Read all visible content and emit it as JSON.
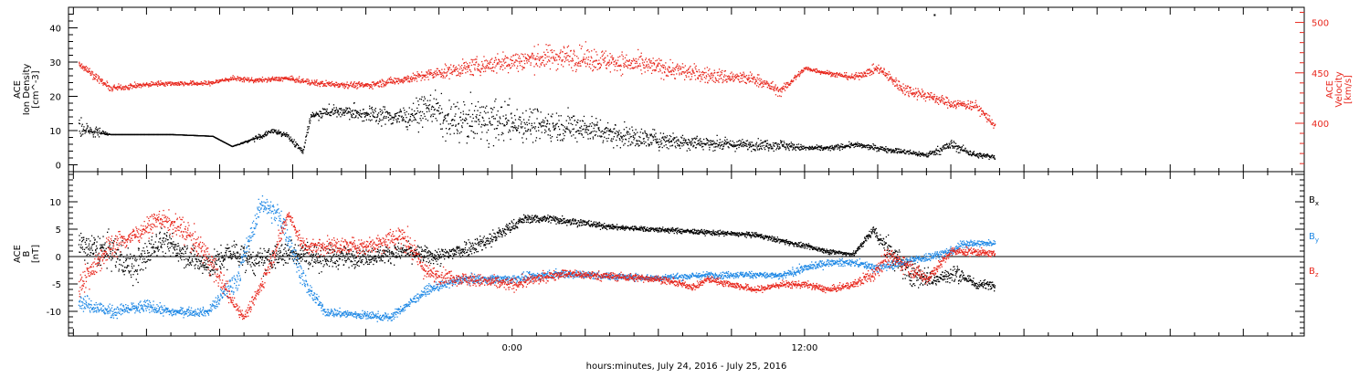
{
  "chart_data": [
    {
      "type": "scatter",
      "panel": "upper",
      "left_axis": {
        "label_lines": [
          "ACE",
          "Ion Density",
          "[cm^-3]"
        ],
        "ylim": [
          -2,
          46
        ],
        "ticks": [
          0,
          10,
          20,
          30,
          40
        ],
        "tick_labels": [
          "0",
          "10",
          "20",
          "30",
          "40"
        ],
        "color": "#000000"
      },
      "right_axis": {
        "label_lines": [
          "ACE",
          "Velocity",
          "[km/s]"
        ],
        "ylim": [
          352,
          515
        ],
        "ticks": [
          400,
          450,
          500
        ],
        "tick_labels": [
          "400",
          "450",
          "500"
        ],
        "color": "#e8261c"
      },
      "series": [
        {
          "axis": "left",
          "color": "#000000",
          "anchors": [
            [
              -17.8,
              11
            ],
            [
              -16.5,
              9
            ],
            [
              -14,
              9
            ],
            [
              -12.3,
              8.5
            ],
            [
              -11.5,
              5.5
            ],
            [
              -10.5,
              8
            ],
            [
              -9.8,
              10
            ],
            [
              -9.3,
              9
            ],
            [
              -8.6,
              4
            ],
            [
              -8.3,
              14
            ],
            [
              -7.6,
              16
            ],
            [
              -6,
              15
            ],
            [
              -4.5,
              14
            ],
            [
              -3.2,
              17
            ],
            [
              -2.8,
              13
            ],
            [
              -1,
              13
            ],
            [
              1,
              12
            ],
            [
              3,
              11
            ],
            [
              5,
              8
            ],
            [
              7,
              7
            ],
            [
              9,
              6
            ],
            [
              11,
              6
            ],
            [
              12,
              5
            ],
            [
              13,
              5
            ],
            [
              14,
              6
            ],
            [
              15,
              5
            ],
            [
              16,
              4
            ],
            [
              17,
              3
            ],
            [
              18,
              6
            ],
            [
              19,
              3
            ],
            [
              19.8,
              2.5
            ]
          ],
          "noise": [
            4,
            0,
            0,
            0,
            0,
            1,
            1,
            1,
            1,
            2,
            2,
            3,
            4,
            6,
            7,
            8,
            6,
            5,
            4,
            3,
            2,
            2,
            1,
            1,
            1,
            1,
            1,
            1,
            2,
            1,
            1
          ]
        },
        {
          "axis": "right",
          "color": "#e8261c",
          "anchors": [
            [
              -17.8,
              460
            ],
            [
              -16.5,
              435
            ],
            [
              -14.5,
              440
            ],
            [
              -12.5,
              440
            ],
            [
              -11.5,
              445
            ],
            [
              -10.5,
              443
            ],
            [
              -9.3,
              445
            ],
            [
              -8,
              440
            ],
            [
              -6,
              438
            ],
            [
              -4,
              446
            ],
            [
              -2,
              455
            ],
            [
              0,
              462
            ],
            [
              2,
              467
            ],
            [
              4,
              462
            ],
            [
              6,
              456
            ],
            [
              8,
              448
            ],
            [
              10,
              444
            ],
            [
              11,
              432
            ],
            [
              12,
              455
            ],
            [
              13,
              450
            ],
            [
              14,
              446
            ],
            [
              15,
              455
            ],
            [
              16,
              435
            ],
            [
              17,
              428
            ],
            [
              18,
              420
            ],
            [
              19,
              418
            ],
            [
              19.8,
              398
            ]
          ],
          "noise": [
            5,
            4,
            3,
            3,
            3,
            3,
            3,
            4,
            4,
            6,
            10,
            14,
            16,
            14,
            12,
            10,
            8,
            6,
            3,
            3,
            4,
            6,
            8,
            7,
            6,
            6,
            6
          ]
        }
      ],
      "isolated_points": [
        {
          "axis": "left",
          "x": 17.3,
          "y": 44
        }
      ]
    },
    {
      "type": "scatter",
      "panel": "lower",
      "left_axis": {
        "label_lines": [
          "ACE",
          "B",
          "[nT]"
        ],
        "ylim": [
          -14.5,
          15.5
        ],
        "ticks": [
          -10,
          -5,
          0,
          5,
          10
        ],
        "tick_labels": [
          "-10",
          "-5",
          "0",
          "5",
          "10"
        ],
        "color": "#000000"
      },
      "legend": {
        "placement": "right",
        "entries": [
          {
            "label": "B",
            "subscript": "x",
            "color": "#000000"
          },
          {
            "label": "B",
            "subscript": "y",
            "color": "#1e88e5"
          },
          {
            "label": "B",
            "subscript": "z",
            "color": "#e8261c"
          }
        ]
      },
      "zero_line": true,
      "series": [
        {
          "axis": "left",
          "color": "#000000",
          "anchors": [
            [
              -17.8,
              2
            ],
            [
              -16.5,
              1
            ],
            [
              -15.5,
              -2
            ],
            [
              -14.5,
              3
            ],
            [
              -13.5,
              1
            ],
            [
              -12.5,
              -2
            ],
            [
              -11.5,
              1
            ],
            [
              -10.5,
              -1
            ],
            [
              -9.8,
              0
            ],
            [
              -9,
              1
            ],
            [
              -8,
              0
            ],
            [
              -6,
              0
            ],
            [
              -4.5,
              1
            ],
            [
              -3,
              0
            ],
            [
              -1,
              3
            ],
            [
              0.5,
              7
            ],
            [
              1.5,
              7
            ],
            [
              2.5,
              6.5
            ],
            [
              4,
              5.5
            ],
            [
              6,
              5
            ],
            [
              8,
              4.5
            ],
            [
              10,
              4
            ],
            [
              12,
              2
            ],
            [
              13,
              1
            ],
            [
              14,
              0.5
            ],
            [
              14.8,
              5
            ],
            [
              15.3,
              2
            ],
            [
              16.3,
              -3
            ],
            [
              17.3,
              -4
            ],
            [
              18.3,
              -3
            ],
            [
              19,
              -5
            ],
            [
              19.8,
              -5
            ]
          ],
          "noise": [
            3,
            4,
            4,
            3,
            3,
            3,
            3,
            3,
            3,
            3,
            3,
            2,
            2,
            2,
            2,
            1,
            1,
            1,
            0.6,
            0.6,
            0.6,
            0.6,
            0.6,
            0.6,
            0.6,
            1,
            3,
            3,
            2,
            2,
            1,
            1
          ]
        },
        {
          "axis": "left",
          "color": "#1e88e5",
          "anchors": [
            [
              -17.8,
              -8
            ],
            [
              -16.5,
              -10
            ],
            [
              -15,
              -9
            ],
            [
              -14,
              -10
            ],
            [
              -12.5,
              -10
            ],
            [
              -11.3,
              -4
            ],
            [
              -10.3,
              10
            ],
            [
              -9.5,
              7
            ],
            [
              -8.5,
              -5
            ],
            [
              -7.7,
              -10
            ],
            [
              -6.5,
              -10.5
            ],
            [
              -5,
              -11
            ],
            [
              -3.5,
              -6
            ],
            [
              -2,
              -4
            ],
            [
              0,
              -4
            ],
            [
              2,
              -3
            ],
            [
              4,
              -3.5
            ],
            [
              6,
              -3.8
            ],
            [
              8,
              -3.3
            ],
            [
              10,
              -3.2
            ],
            [
              11,
              -3.5
            ],
            [
              12,
              -2
            ],
            [
              13,
              -1
            ],
            [
              14,
              -1
            ],
            [
              15,
              -2
            ],
            [
              16,
              -1
            ],
            [
              17,
              0
            ],
            [
              18,
              1
            ],
            [
              18.5,
              2.5
            ],
            [
              19.8,
              2.5
            ]
          ],
          "noise": [
            2,
            1.5,
            1.5,
            1,
            1,
            3,
            2,
            3,
            2,
            1,
            1,
            1,
            1,
            1,
            1,
            1,
            0.8,
            0.8,
            0.8,
            0.8,
            0.8,
            1,
            0.8,
            0.8,
            1,
            1,
            1,
            1,
            1,
            0.6
          ]
        },
        {
          "axis": "left",
          "color": "#e8261c",
          "anchors": [
            [
              -17.8,
              -5
            ],
            [
              -16.5,
              2
            ],
            [
              -15.5,
              4
            ],
            [
              -14.5,
              7
            ],
            [
              -13.5,
              5
            ],
            [
              -12.5,
              0
            ],
            [
              -11.5,
              -8
            ],
            [
              -11,
              -11
            ],
            [
              -10.3,
              -5
            ],
            [
              -9.5,
              4
            ],
            [
              -9.2,
              8
            ],
            [
              -8.6,
              2
            ],
            [
              -7.5,
              2
            ],
            [
              -6,
              2
            ],
            [
              -4.5,
              4
            ],
            [
              -3.5,
              -3
            ],
            [
              -2,
              -4
            ],
            [
              0,
              -5
            ],
            [
              2,
              -3
            ],
            [
              4,
              -3.5
            ],
            [
              6,
              -4
            ],
            [
              7.5,
              -5.5
            ],
            [
              8,
              -4
            ],
            [
              9,
              -5
            ],
            [
              10,
              -6
            ],
            [
              11,
              -5
            ],
            [
              12,
              -5
            ],
            [
              13,
              -6
            ],
            [
              14,
              -5
            ],
            [
              14.8,
              -3
            ],
            [
              15.3,
              0
            ],
            [
              16,
              -1
            ],
            [
              17,
              -4
            ],
            [
              18,
              1
            ],
            [
              19,
              1
            ],
            [
              19.8,
              0.5
            ]
          ],
          "noise": [
            3,
            3,
            2,
            2,
            3,
            3,
            2,
            1,
            2,
            2,
            1,
            2,
            2,
            2,
            3,
            2,
            1.5,
            1.5,
            1,
            1,
            0.8,
            0.8,
            0.8,
            0.8,
            0.8,
            0.8,
            0.8,
            0.8,
            0.8,
            2,
            2,
            2,
            1.5,
            1,
            1,
            0.6
          ]
        }
      ]
    }
  ],
  "x_axis": {
    "label": "hours:minutes, July 24, 2016 - July 25, 2016",
    "unit": "hours relative to July 25, 2016 00:00",
    "xlim": [
      -18.2,
      32.5
    ],
    "labeled_ticks": [
      0,
      12
    ],
    "tick_labels": [
      "0:00",
      "12:00"
    ],
    "data_end": 19.8
  },
  "colors": {
    "black": "#000000",
    "red": "#e8261c",
    "blue": "#1e88e5"
  }
}
